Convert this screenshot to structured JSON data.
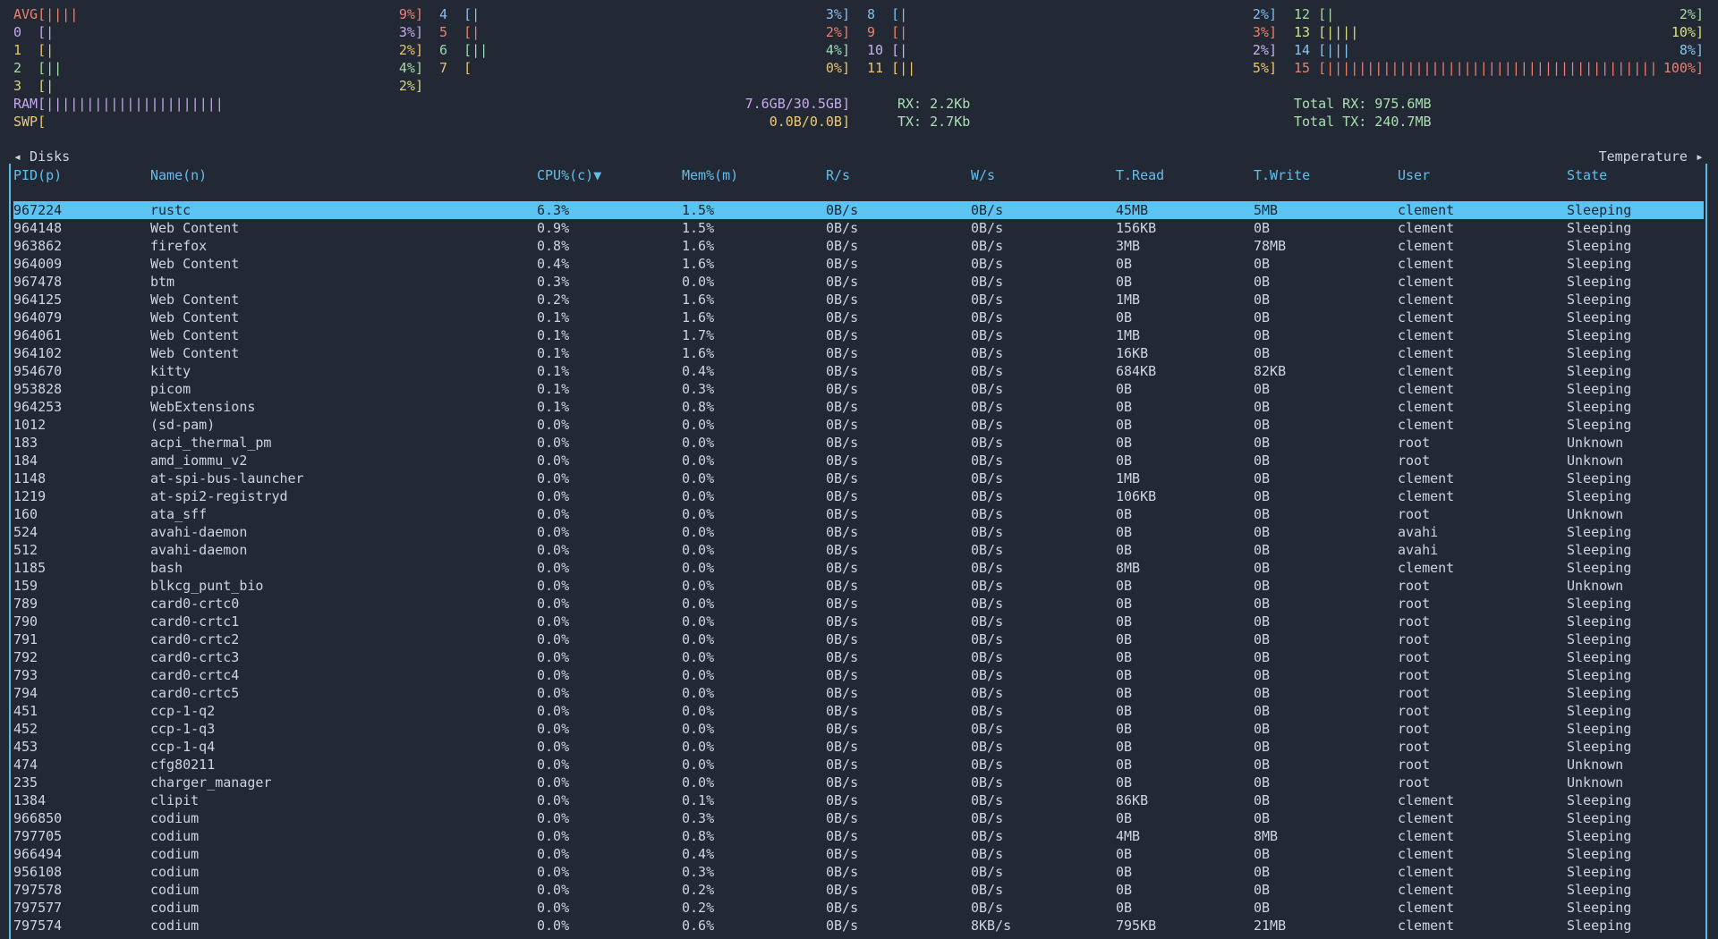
{
  "cpu_panel": {
    "columns": [
      [
        {
          "label": "AVG",
          "bar": "[||||",
          "usage": "9%]",
          "color": "#ea8470"
        },
        {
          "label": "0",
          "bar": "[|",
          "usage": "3%]",
          "color": "#c4a8f0"
        },
        {
          "label": "1",
          "bar": "[|",
          "usage": "2%]",
          "color": "#ecc46c"
        },
        {
          "label": "2",
          "bar": "[||",
          "usage": "4%]",
          "color": "#a6dca0"
        },
        {
          "label": "3",
          "bar": "[|",
          "usage": "2%]",
          "color": "#d4d888"
        }
      ],
      [
        {
          "label": "4",
          "bar": "[|",
          "usage": "3%]",
          "color": "#8cbcf0"
        },
        {
          "label": "5",
          "bar": "[|",
          "usage": "2%]",
          "color": "#ee7f6e"
        },
        {
          "label": "6",
          "bar": "[||",
          "usage": "4%]",
          "color": "#9ed8b4"
        },
        {
          "label": "7",
          "bar": "[",
          "usage": "0%]",
          "color": "#e8c46e"
        }
      ],
      [
        {
          "label": "8",
          "bar": "[|",
          "usage": "2%]",
          "color": "#7cbff0"
        },
        {
          "label": "9",
          "bar": "[|",
          "usage": "3%]",
          "color": "#ee7f6e"
        },
        {
          "label": "10",
          "bar": "[|",
          "usage": "2%]",
          "color": "#c4b4ee"
        },
        {
          "label": "11",
          "bar": "[||",
          "usage": "5%]",
          "color": "#f2c46a"
        }
      ],
      [
        {
          "label": "12",
          "bar": "[|",
          "usage": "2%]",
          "color": "#a6dca0"
        },
        {
          "label": "13",
          "bar": "[||||",
          "usage": "10%]",
          "color": "#d8e07c"
        },
        {
          "label": "14",
          "bar": "[|||",
          "usage": "8%]",
          "color": "#88c4f2"
        },
        {
          "label": "15",
          "bar": "[|||||||||||||||||||||||||||||||||||||||||",
          "usage": "100%]",
          "color": "#ee7f6e"
        }
      ]
    ]
  },
  "memory": {
    "ram": {
      "label": "RAM",
      "bar": "[||||||||||||||||||||||",
      "usage": "7.6GB/30.5GB]",
      "color": "#c8a8f0"
    },
    "swap": {
      "label": "SWP",
      "bar": "[",
      "usage": "0.0B/0.0B]",
      "color": "#f0c870"
    }
  },
  "network": {
    "rx": "RX: 2.2Kb",
    "tx": "TX: 2.7Kb",
    "total_rx": "Total RX: 975.6MB",
    "total_tx": "Total TX: 240.7MB",
    "color": "#a8e0b0"
  },
  "tabs": {
    "left": "◂ Disks",
    "right": "Temperature ▸"
  },
  "table": {
    "headers": [
      "PID(p)",
      "Name(n)",
      "CPU%(c)▼",
      "Mem%(m)",
      "R/s",
      "W/s",
      "T.Read",
      "T.Write",
      "User",
      "State"
    ],
    "selected_row": 0,
    "rows": [
      [
        "967224",
        "rustc",
        "6.3%",
        "1.5%",
        "0B/s",
        "0B/s",
        "45MB",
        "5MB",
        "clement",
        "Sleeping"
      ],
      [
        "964148",
        "Web Content",
        "0.9%",
        "1.5%",
        "0B/s",
        "0B/s",
        "156KB",
        "0B",
        "clement",
        "Sleeping"
      ],
      [
        "963862",
        "firefox",
        "0.8%",
        "1.6%",
        "0B/s",
        "0B/s",
        "3MB",
        "78MB",
        "clement",
        "Sleeping"
      ],
      [
        "964009",
        "Web Content",
        "0.4%",
        "1.6%",
        "0B/s",
        "0B/s",
        "0B",
        "0B",
        "clement",
        "Sleeping"
      ],
      [
        "967478",
        "btm",
        "0.3%",
        "0.0%",
        "0B/s",
        "0B/s",
        "0B",
        "0B",
        "clement",
        "Sleeping"
      ],
      [
        "964125",
        "Web Content",
        "0.2%",
        "1.6%",
        "0B/s",
        "0B/s",
        "1MB",
        "0B",
        "clement",
        "Sleeping"
      ],
      [
        "964079",
        "Web Content",
        "0.1%",
        "1.6%",
        "0B/s",
        "0B/s",
        "0B",
        "0B",
        "clement",
        "Sleeping"
      ],
      [
        "964061",
        "Web Content",
        "0.1%",
        "1.7%",
        "0B/s",
        "0B/s",
        "1MB",
        "0B",
        "clement",
        "Sleeping"
      ],
      [
        "964102",
        "Web Content",
        "0.1%",
        "1.6%",
        "0B/s",
        "0B/s",
        "16KB",
        "0B",
        "clement",
        "Sleeping"
      ],
      [
        "954670",
        "kitty",
        "0.1%",
        "0.4%",
        "0B/s",
        "0B/s",
        "684KB",
        "82KB",
        "clement",
        "Sleeping"
      ],
      [
        "953828",
        "picom",
        "0.1%",
        "0.3%",
        "0B/s",
        "0B/s",
        "0B",
        "0B",
        "clement",
        "Sleeping"
      ],
      [
        "964253",
        "WebExtensions",
        "0.1%",
        "0.8%",
        "0B/s",
        "0B/s",
        "0B",
        "0B",
        "clement",
        "Sleeping"
      ],
      [
        "1012",
        "(sd-pam)",
        "0.0%",
        "0.0%",
        "0B/s",
        "0B/s",
        "0B",
        "0B",
        "clement",
        "Sleeping"
      ],
      [
        "183",
        "acpi_thermal_pm",
        "0.0%",
        "0.0%",
        "0B/s",
        "0B/s",
        "0B",
        "0B",
        "root",
        "Unknown"
      ],
      [
        "184",
        "amd_iommu_v2",
        "0.0%",
        "0.0%",
        "0B/s",
        "0B/s",
        "0B",
        "0B",
        "root",
        "Unknown"
      ],
      [
        "1148",
        "at-spi-bus-launcher",
        "0.0%",
        "0.0%",
        "0B/s",
        "0B/s",
        "1MB",
        "0B",
        "clement",
        "Sleeping"
      ],
      [
        "1219",
        "at-spi2-registryd",
        "0.0%",
        "0.0%",
        "0B/s",
        "0B/s",
        "106KB",
        "0B",
        "clement",
        "Sleeping"
      ],
      [
        "160",
        "ata_sff",
        "0.0%",
        "0.0%",
        "0B/s",
        "0B/s",
        "0B",
        "0B",
        "root",
        "Unknown"
      ],
      [
        "524",
        "avahi-daemon",
        "0.0%",
        "0.0%",
        "0B/s",
        "0B/s",
        "0B",
        "0B",
        "avahi",
        "Sleeping"
      ],
      [
        "512",
        "avahi-daemon",
        "0.0%",
        "0.0%",
        "0B/s",
        "0B/s",
        "0B",
        "0B",
        "avahi",
        "Sleeping"
      ],
      [
        "1185",
        "bash",
        "0.0%",
        "0.0%",
        "0B/s",
        "0B/s",
        "8MB",
        "0B",
        "clement",
        "Sleeping"
      ],
      [
        "159",
        "blkcg_punt_bio",
        "0.0%",
        "0.0%",
        "0B/s",
        "0B/s",
        "0B",
        "0B",
        "root",
        "Unknown"
      ],
      [
        "789",
        "card0-crtc0",
        "0.0%",
        "0.0%",
        "0B/s",
        "0B/s",
        "0B",
        "0B",
        "root",
        "Sleeping"
      ],
      [
        "790",
        "card0-crtc1",
        "0.0%",
        "0.0%",
        "0B/s",
        "0B/s",
        "0B",
        "0B",
        "root",
        "Sleeping"
      ],
      [
        "791",
        "card0-crtc2",
        "0.0%",
        "0.0%",
        "0B/s",
        "0B/s",
        "0B",
        "0B",
        "root",
        "Sleeping"
      ],
      [
        "792",
        "card0-crtc3",
        "0.0%",
        "0.0%",
        "0B/s",
        "0B/s",
        "0B",
        "0B",
        "root",
        "Sleeping"
      ],
      [
        "793",
        "card0-crtc4",
        "0.0%",
        "0.0%",
        "0B/s",
        "0B/s",
        "0B",
        "0B",
        "root",
        "Sleeping"
      ],
      [
        "794",
        "card0-crtc5",
        "0.0%",
        "0.0%",
        "0B/s",
        "0B/s",
        "0B",
        "0B",
        "root",
        "Sleeping"
      ],
      [
        "451",
        "ccp-1-q2",
        "0.0%",
        "0.0%",
        "0B/s",
        "0B/s",
        "0B",
        "0B",
        "root",
        "Sleeping"
      ],
      [
        "452",
        "ccp-1-q3",
        "0.0%",
        "0.0%",
        "0B/s",
        "0B/s",
        "0B",
        "0B",
        "root",
        "Sleeping"
      ],
      [
        "453",
        "ccp-1-q4",
        "0.0%",
        "0.0%",
        "0B/s",
        "0B/s",
        "0B",
        "0B",
        "root",
        "Sleeping"
      ],
      [
        "474",
        "cfg80211",
        "0.0%",
        "0.0%",
        "0B/s",
        "0B/s",
        "0B",
        "0B",
        "root",
        "Unknown"
      ],
      [
        "235",
        "charger_manager",
        "0.0%",
        "0.0%",
        "0B/s",
        "0B/s",
        "0B",
        "0B",
        "root",
        "Unknown"
      ],
      [
        "1384",
        "clipit",
        "0.0%",
        "0.1%",
        "0B/s",
        "0B/s",
        "86KB",
        "0B",
        "clement",
        "Sleeping"
      ],
      [
        "966850",
        "codium",
        "0.0%",
        "0.3%",
        "0B/s",
        "0B/s",
        "0B",
        "0B",
        "clement",
        "Sleeping"
      ],
      [
        "797705",
        "codium",
        "0.0%",
        "0.8%",
        "0B/s",
        "0B/s",
        "4MB",
        "8MB",
        "clement",
        "Sleeping"
      ],
      [
        "966494",
        "codium",
        "0.0%",
        "0.4%",
        "0B/s",
        "0B/s",
        "0B",
        "0B",
        "clement",
        "Sleeping"
      ],
      [
        "956108",
        "codium",
        "0.0%",
        "0.3%",
        "0B/s",
        "0B/s",
        "0B",
        "0B",
        "clement",
        "Sleeping"
      ],
      [
        "797578",
        "codium",
        "0.0%",
        "0.2%",
        "0B/s",
        "0B/s",
        "0B",
        "0B",
        "clement",
        "Sleeping"
      ],
      [
        "797577",
        "codium",
        "0.0%",
        "0.2%",
        "0B/s",
        "0B/s",
        "0B",
        "0B",
        "clement",
        "Sleeping"
      ],
      [
        "797574",
        "codium",
        "0.0%",
        "0.6%",
        "0B/s",
        "8KB/s",
        "795KB",
        "21MB",
        "clement",
        "Sleeping"
      ]
    ]
  }
}
